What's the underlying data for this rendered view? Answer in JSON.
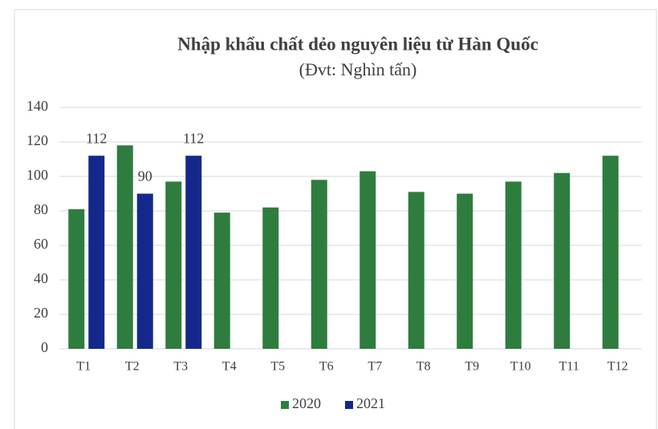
{
  "chart_data": {
    "type": "bar",
    "title": "Nhập khẩu chất dẻo nguyên liệu từ Hàn Quốc",
    "subtitle": "(Đvt: Nghìn tấn)",
    "categories": [
      "T1",
      "T2",
      "T3",
      "T4",
      "T5",
      "T6",
      "T7",
      "T8",
      "T9",
      "T10",
      "T11",
      "T12"
    ],
    "series": [
      {
        "name": "2020",
        "color": "#2e7d3e",
        "values": [
          81,
          118,
          97,
          79,
          82,
          98,
          103,
          91,
          90,
          97,
          102,
          112
        ]
      },
      {
        "name": "2021",
        "color": "#14288c",
        "values": [
          112,
          90,
          112,
          null,
          null,
          null,
          null,
          null,
          null,
          null,
          null,
          null
        ]
      }
    ],
    "data_labels_series": "2021",
    "ylim": [
      0,
      140
    ],
    "yticks": [
      0,
      20,
      40,
      60,
      80,
      100,
      120,
      140
    ],
    "grid": true,
    "legend": "bottom"
  }
}
